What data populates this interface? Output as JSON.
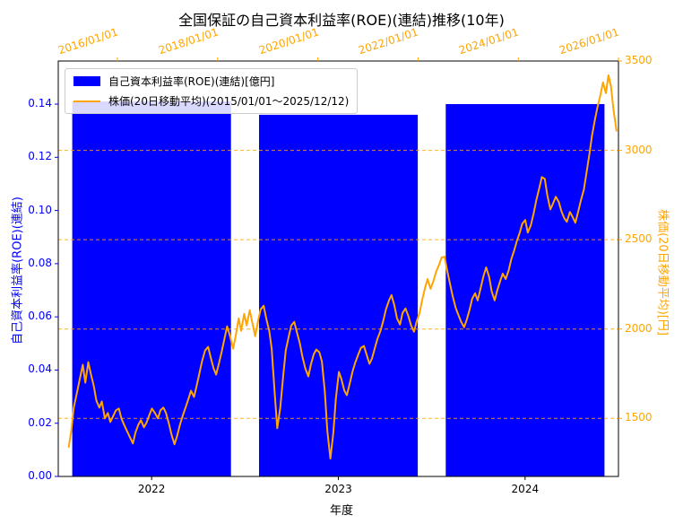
{
  "title": "全国保証の自己資本利益率(ROE)(連結)推移(10年)",
  "colors": {
    "roe_blue": "#0000ff",
    "price_orange": "#ffa500",
    "spine_black": "#000000",
    "legend_border": "#cccccc"
  },
  "legend": {
    "items": [
      {
        "label": "自己資本利益率(ROE)(連結)[億円]",
        "swatch": "bar-swatch",
        "color": "#0000ff"
      },
      {
        "label": "株価(20日移動平均)(2015/01/01〜2025/12/12)",
        "swatch": "line-swatch",
        "color": "#ffa500"
      }
    ]
  },
  "axes": {
    "bottom": {
      "label": "年度",
      "ticks": [
        "2022",
        "2023",
        "2024"
      ],
      "color": "#000000"
    },
    "top": {
      "ticks": [
        "2016/01/01",
        "2018/01/01",
        "2020/01/01",
        "2022/01/01",
        "2024/01/01",
        "2026/01/01"
      ],
      "tick_years": [
        2016,
        2018,
        2020,
        2022,
        2024,
        2026
      ],
      "color": "#ffa500"
    },
    "left": {
      "label": "自己資本利益率(ROE)(連結)",
      "ticks": [
        0.0,
        0.02,
        0.04,
        0.06,
        0.08,
        0.1,
        0.12,
        0.14
      ],
      "range": [
        0,
        0.1562
      ],
      "color": "#0000ff"
    },
    "right": {
      "label": "株価(20日移動平均)[円]",
      "ticks": [
        1500,
        2000,
        2500,
        3000,
        3500
      ],
      "range": [
        1175,
        3500
      ],
      "color": "#ffa500",
      "grid": "dashed"
    }
  },
  "chart_data": [
    {
      "type": "bar",
      "name": "roe-bars",
      "legend_label": "自己資本利益率(ROE)(連結)[億円]",
      "title": "全国保証の自己資本利益率(ROE)(連結)推移(10年)",
      "xlabel": "年度",
      "ylabel": "自己資本利益率(ROE)(連結)",
      "categories": [
        "2022",
        "2023",
        "2024"
      ],
      "values": [
        0.141,
        0.136,
        0.14
      ],
      "ylim": [
        0,
        0.1562
      ],
      "yticks": [
        0.0,
        0.02,
        0.04,
        0.06,
        0.08,
        0.1,
        0.12,
        0.14
      ],
      "color": "#0000ff"
    },
    {
      "type": "line",
      "name": "stock-price-20day-moving-average",
      "legend_label": "株価(20日移動平均)(2015/01/01〜2025/12/12)",
      "ylabel": "株価(20日移動平均)[円]",
      "ylim": [
        1175,
        3500
      ],
      "yticks": [
        1500,
        2000,
        2500,
        3000,
        3500
      ],
      "xlim": [
        2014.82,
        2026.0
      ],
      "xticks": [
        2016,
        2018,
        2020,
        2022,
        2024,
        2026
      ],
      "xtick_labels": [
        "2016/01/01",
        "2018/01/01",
        "2020/01/01",
        "2022/01/01",
        "2024/01/01",
        "2026/01/01"
      ],
      "color": "#ffa500",
      "points": [
        [
          2015.03,
          1340
        ],
        [
          2015.08,
          1430
        ],
        [
          2015.13,
          1560
        ],
        [
          2015.19,
          1640
        ],
        [
          2015.25,
          1720
        ],
        [
          2015.31,
          1800
        ],
        [
          2015.36,
          1700
        ],
        [
          2015.42,
          1815
        ],
        [
          2015.47,
          1750
        ],
        [
          2015.53,
          1680
        ],
        [
          2015.58,
          1600
        ],
        [
          2015.64,
          1560
        ],
        [
          2015.69,
          1595
        ],
        [
          2015.75,
          1500
        ],
        [
          2015.81,
          1530
        ],
        [
          2015.86,
          1480
        ],
        [
          2015.92,
          1515
        ],
        [
          2015.97,
          1545
        ],
        [
          2016.03,
          1555
        ],
        [
          2016.08,
          1500
        ],
        [
          2016.14,
          1460
        ],
        [
          2016.19,
          1430
        ],
        [
          2016.25,
          1395
        ],
        [
          2016.31,
          1360
        ],
        [
          2016.36,
          1420
        ],
        [
          2016.42,
          1465
        ],
        [
          2016.47,
          1490
        ],
        [
          2016.53,
          1450
        ],
        [
          2016.58,
          1475
        ],
        [
          2016.64,
          1520
        ],
        [
          2016.69,
          1555
        ],
        [
          2016.75,
          1530
        ],
        [
          2016.81,
          1500
        ],
        [
          2016.86,
          1545
        ],
        [
          2016.92,
          1560
        ],
        [
          2016.97,
          1530
        ],
        [
          2017.03,
          1470
        ],
        [
          2017.08,
          1410
        ],
        [
          2017.14,
          1355
        ],
        [
          2017.19,
          1400
        ],
        [
          2017.25,
          1465
        ],
        [
          2017.31,
          1520
        ],
        [
          2017.36,
          1560
        ],
        [
          2017.42,
          1610
        ],
        [
          2017.47,
          1655
        ],
        [
          2017.53,
          1620
        ],
        [
          2017.58,
          1680
        ],
        [
          2017.64,
          1755
        ],
        [
          2017.69,
          1820
        ],
        [
          2017.75,
          1880
        ],
        [
          2017.81,
          1900
        ],
        [
          2017.86,
          1845
        ],
        [
          2017.92,
          1780
        ],
        [
          2017.97,
          1745
        ],
        [
          2018.03,
          1810
        ],
        [
          2018.08,
          1870
        ],
        [
          2018.14,
          1950
        ],
        [
          2018.19,
          2015
        ],
        [
          2018.25,
          1960
        ],
        [
          2018.31,
          1890
        ],
        [
          2018.36,
          1960
        ],
        [
          2018.42,
          2060
        ],
        [
          2018.47,
          1990
        ],
        [
          2018.53,
          2085
        ],
        [
          2018.58,
          2020
        ],
        [
          2018.64,
          2105
        ],
        [
          2018.69,
          2040
        ],
        [
          2018.75,
          1960
        ],
        [
          2018.81,
          2050
        ],
        [
          2018.86,
          2110
        ],
        [
          2018.92,
          2130
        ],
        [
          2018.97,
          2060
        ],
        [
          2019.03,
          1990
        ],
        [
          2019.08,
          1890
        ],
        [
          2019.14,
          1640
        ],
        [
          2019.19,
          1445
        ],
        [
          2019.25,
          1560
        ],
        [
          2019.31,
          1740
        ],
        [
          2019.36,
          1880
        ],
        [
          2019.42,
          1960
        ],
        [
          2019.47,
          2020
        ],
        [
          2019.53,
          2040
        ],
        [
          2019.58,
          1985
        ],
        [
          2019.64,
          1920
        ],
        [
          2019.69,
          1850
        ],
        [
          2019.75,
          1780
        ],
        [
          2019.81,
          1735
        ],
        [
          2019.86,
          1800
        ],
        [
          2019.92,
          1860
        ],
        [
          2019.97,
          1885
        ],
        [
          2020.03,
          1870
        ],
        [
          2020.08,
          1820
        ],
        [
          2020.14,
          1650
        ],
        [
          2020.19,
          1430
        ],
        [
          2020.25,
          1275
        ],
        [
          2020.31,
          1420
        ],
        [
          2020.36,
          1610
        ],
        [
          2020.42,
          1760
        ],
        [
          2020.47,
          1720
        ],
        [
          2020.53,
          1655
        ],
        [
          2020.58,
          1630
        ],
        [
          2020.64,
          1700
        ],
        [
          2020.69,
          1760
        ],
        [
          2020.75,
          1815
        ],
        [
          2020.81,
          1860
        ],
        [
          2020.86,
          1895
        ],
        [
          2020.92,
          1905
        ],
        [
          2020.97,
          1860
        ],
        [
          2021.03,
          1805
        ],
        [
          2021.08,
          1835
        ],
        [
          2021.14,
          1895
        ],
        [
          2021.19,
          1945
        ],
        [
          2021.25,
          1990
        ],
        [
          2021.31,
          2050
        ],
        [
          2021.36,
          2110
        ],
        [
          2021.42,
          2160
        ],
        [
          2021.47,
          2190
        ],
        [
          2021.53,
          2130
        ],
        [
          2021.58,
          2060
        ],
        [
          2021.64,
          2025
        ],
        [
          2021.69,
          2090
        ],
        [
          2021.75,
          2115
        ],
        [
          2021.81,
          2070
        ],
        [
          2021.86,
          2020
        ],
        [
          2021.92,
          1985
        ],
        [
          2021.97,
          2040
        ],
        [
          2022.03,
          2090
        ],
        [
          2022.08,
          2160
        ],
        [
          2022.14,
          2230
        ],
        [
          2022.19,
          2280
        ],
        [
          2022.25,
          2225
        ],
        [
          2022.31,
          2270
        ],
        [
          2022.36,
          2320
        ],
        [
          2022.42,
          2360
        ],
        [
          2022.47,
          2400
        ],
        [
          2022.53,
          2405
        ],
        [
          2022.58,
          2330
        ],
        [
          2022.64,
          2250
        ],
        [
          2022.69,
          2185
        ],
        [
          2022.75,
          2120
        ],
        [
          2022.81,
          2075
        ],
        [
          2022.86,
          2040
        ],
        [
          2022.92,
          2010
        ],
        [
          2022.97,
          2050
        ],
        [
          2023.03,
          2110
        ],
        [
          2023.08,
          2170
        ],
        [
          2023.14,
          2200
        ],
        [
          2023.19,
          2160
        ],
        [
          2023.25,
          2230
        ],
        [
          2023.31,
          2300
        ],
        [
          2023.36,
          2345
        ],
        [
          2023.42,
          2290
        ],
        [
          2023.47,
          2210
        ],
        [
          2023.53,
          2160
        ],
        [
          2023.58,
          2215
        ],
        [
          2023.64,
          2270
        ],
        [
          2023.69,
          2310
        ],
        [
          2023.75,
          2280
        ],
        [
          2023.81,
          2330
        ],
        [
          2023.86,
          2390
        ],
        [
          2023.92,
          2440
        ],
        [
          2023.97,
          2490
        ],
        [
          2024.03,
          2540
        ],
        [
          2024.08,
          2590
        ],
        [
          2024.14,
          2610
        ],
        [
          2024.19,
          2540
        ],
        [
          2024.25,
          2580
        ],
        [
          2024.31,
          2650
        ],
        [
          2024.36,
          2720
        ],
        [
          2024.42,
          2790
        ],
        [
          2024.47,
          2850
        ],
        [
          2024.53,
          2840
        ],
        [
          2024.58,
          2750
        ],
        [
          2024.64,
          2670
        ],
        [
          2024.69,
          2700
        ],
        [
          2024.75,
          2740
        ],
        [
          2024.81,
          2710
        ],
        [
          2024.86,
          2660
        ],
        [
          2024.92,
          2620
        ],
        [
          2024.97,
          2600
        ],
        [
          2025.03,
          2655
        ],
        [
          2025.08,
          2630
        ],
        [
          2025.14,
          2595
        ],
        [
          2025.19,
          2650
        ],
        [
          2025.25,
          2720
        ],
        [
          2025.31,
          2780
        ],
        [
          2025.36,
          2870
        ],
        [
          2025.42,
          2980
        ],
        [
          2025.47,
          3080
        ],
        [
          2025.53,
          3170
        ],
        [
          2025.58,
          3240
        ],
        [
          2025.64,
          3310
        ],
        [
          2025.69,
          3380
        ],
        [
          2025.75,
          3320
        ],
        [
          2025.8,
          3420
        ],
        [
          2025.85,
          3360
        ],
        [
          2025.9,
          3230
        ],
        [
          2025.96,
          3110
        ]
      ]
    }
  ]
}
